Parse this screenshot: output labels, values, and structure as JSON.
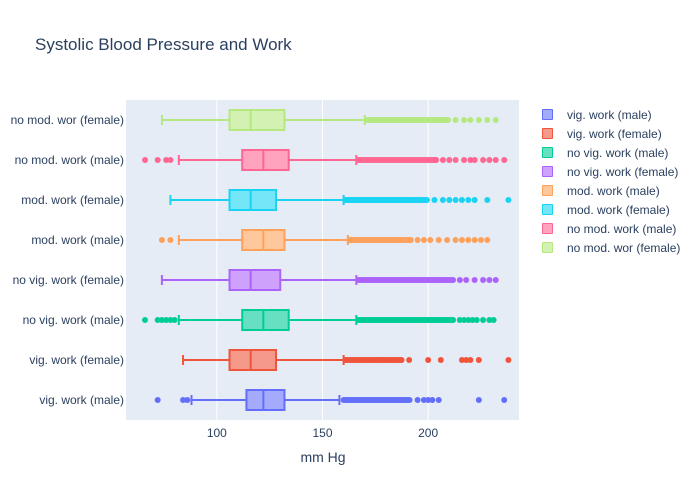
{
  "chart_data": {
    "type": "box",
    "title": "Systolic Blood Pressure and Work",
    "xlabel": "mm Hg",
    "ylabel": "",
    "xlim": [
      57,
      243
    ],
    "xticks": [
      100,
      150,
      200
    ],
    "grid": true,
    "legend_position": "right",
    "series": [
      {
        "name": "vig. work (male)",
        "color": "#636efa",
        "fill": "#a5abfc",
        "stats": {
          "lower_fence": 88,
          "q1": 114,
          "median": 122,
          "q3": 132,
          "upper_fence": 158
        },
        "outliers_low": [
          72,
          84,
          86
        ],
        "outliers_high_range": [
          160,
          192
        ],
        "outliers_high_extra": [
          195,
          198,
          200,
          202,
          205,
          224,
          236
        ]
      },
      {
        "name": "vig. work (female)",
        "color": "#ef553b",
        "fill": "#f59a8b",
        "stats": {
          "lower_fence": 84,
          "q1": 106,
          "median": 116,
          "q3": 128,
          "upper_fence": 160
        },
        "outliers_low": [],
        "outliers_high_range": [
          161,
          188
        ],
        "outliers_high_extra": [
          191,
          200,
          206,
          216,
          218,
          220,
          224,
          238
        ]
      },
      {
        "name": "no vig. work (male)",
        "color": "#00cc96",
        "fill": "#66e0c0",
        "stats": {
          "lower_fence": 82,
          "q1": 112,
          "median": 122,
          "q3": 134,
          "upper_fence": 166
        },
        "outliers_low": [
          66,
          72,
          74,
          76,
          78,
          80
        ],
        "outliers_high_range": [
          167,
          212
        ],
        "outliers_high_extra": [
          215,
          217,
          219,
          221,
          223,
          226,
          229,
          231
        ]
      },
      {
        "name": "no vig. work (female)",
        "color": "#ab63fa",
        "fill": "#cda1fc",
        "stats": {
          "lower_fence": 74,
          "q1": 106,
          "median": 116,
          "q3": 130,
          "upper_fence": 166
        },
        "outliers_low": [],
        "outliers_high_range": [
          167,
          212
        ],
        "outliers_high_extra": [
          215,
          218,
          222,
          226,
          229,
          232
        ]
      },
      {
        "name": "mod. work (male)",
        "color": "#ffa15a",
        "fill": "#ffc79c",
        "stats": {
          "lower_fence": 82,
          "q1": 112,
          "median": 122,
          "q3": 132,
          "upper_fence": 162
        },
        "outliers_low": [
          74,
          78
        ],
        "outliers_high_range": [
          163,
          192
        ],
        "outliers_high_extra": [
          195,
          198,
          201,
          205,
          209,
          213,
          216,
          219,
          222,
          225,
          228
        ]
      },
      {
        "name": "mod. work (female)",
        "color": "#19d3f3",
        "fill": "#75e5f8",
        "stats": {
          "lower_fence": 78,
          "q1": 106,
          "median": 116,
          "q3": 128,
          "upper_fence": 160
        },
        "outliers_low": [],
        "outliers_high_range": [
          161,
          200
        ],
        "outliers_high_extra": [
          203,
          207,
          210,
          213,
          216,
          219,
          222,
          228,
          238
        ]
      },
      {
        "name": "no mod. work (male)",
        "color": "#ff6692",
        "fill": "#ffa3be",
        "stats": {
          "lower_fence": 82,
          "q1": 112,
          "median": 122,
          "q3": 134,
          "upper_fence": 166
        },
        "outliers_low": [
          66,
          72,
          76,
          78
        ],
        "outliers_high_range": [
          167,
          204
        ],
        "outliers_high_extra": [
          207,
          210,
          213,
          217,
          220,
          222,
          226,
          229,
          232,
          236
        ]
      },
      {
        "name": "no mod. wor (female)",
        "color": "#b6e880",
        "fill": "#d3f1b3",
        "stats": {
          "lower_fence": 74,
          "q1": 106,
          "median": 116,
          "q3": 132,
          "upper_fence": 170
        },
        "outliers_low": [],
        "outliers_high_range": [
          171,
          210
        ],
        "outliers_high_extra": [
          213,
          217,
          220,
          224,
          228,
          232
        ]
      }
    ]
  }
}
